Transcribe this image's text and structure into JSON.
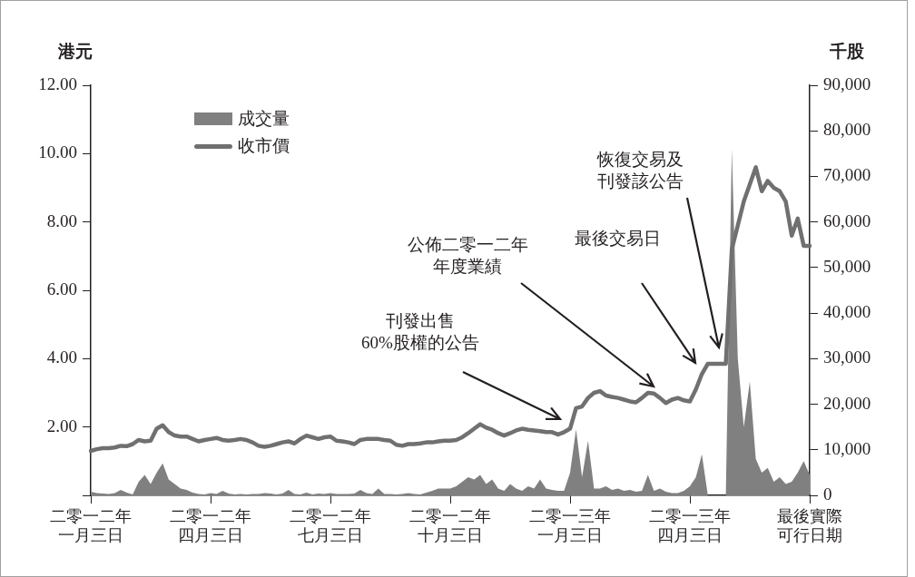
{
  "chart_data": {
    "type": "line",
    "ylabel": "港元",
    "y2label": "千股",
    "categories": [
      "二零一二年一月三日",
      null,
      null,
      null,
      null,
      null,
      null,
      null,
      null,
      null,
      null,
      null,
      null,
      null,
      null,
      null,
      null,
      null,
      null,
      null,
      "二零一二年四月三日",
      null,
      null,
      null,
      null,
      null,
      null,
      null,
      null,
      null,
      null,
      null,
      null,
      null,
      null,
      null,
      null,
      null,
      null,
      null,
      "二零一二年七月三日",
      null,
      null,
      null,
      null,
      null,
      null,
      null,
      null,
      null,
      null,
      null,
      null,
      null,
      null,
      null,
      null,
      null,
      null,
      null,
      "二零一二年十月三日",
      null,
      null,
      null,
      null,
      null,
      null,
      null,
      null,
      null,
      null,
      null,
      null,
      null,
      null,
      null,
      null,
      null,
      null,
      null,
      "二零一三年一月三日",
      null,
      null,
      null,
      null,
      null,
      null,
      null,
      null,
      null,
      null,
      null,
      null,
      null,
      null,
      null,
      null,
      null,
      null,
      null,
      "二零一三年四月三日",
      null,
      null,
      null,
      null,
      null,
      null,
      null,
      null,
      null,
      null,
      null,
      null,
      null,
      null,
      null,
      null,
      null,
      null,
      null,
      "最後實際可行日期"
    ],
    "series": [
      {
        "name": "成交量",
        "type": "area",
        "axis": "y2",
        "color": "#808080",
        "values": [
          800,
          500,
          400,
          300,
          500,
          1200,
          600,
          200,
          3000,
          4500,
          2500,
          5000,
          7000,
          3500,
          2500,
          1500,
          1200,
          600,
          300,
          200,
          500,
          300,
          1000,
          400,
          200,
          300,
          200,
          300,
          300,
          500,
          400,
          200,
          400,
          1200,
          300,
          200,
          600,
          200,
          400,
          300,
          500,
          300,
          300,
          300,
          400,
          1200,
          500,
          300,
          1500,
          300,
          300,
          200,
          300,
          500,
          300,
          200,
          600,
          1000,
          1500,
          1500,
          1500,
          2000,
          3000,
          4000,
          3500,
          4500,
          2500,
          3500,
          1500,
          1000,
          2500,
          1500,
          1000,
          2000,
          1500,
          3500,
          1500,
          1200,
          1000,
          1000,
          5000,
          14500,
          4000,
          12000,
          1500,
          1500,
          2000,
          1200,
          1500,
          1000,
          1200,
          800,
          1000,
          4500,
          1000,
          1500,
          800,
          500,
          500,
          1000,
          2000,
          4000,
          9000,
          0,
          0,
          0,
          0,
          76000,
          30000,
          15000,
          25000,
          8000,
          5000,
          6000,
          3000,
          4000,
          2500,
          3000,
          5000,
          7500,
          4500
        ]
      },
      {
        "name": "收市價",
        "type": "line",
        "color": "#707070",
        "values": [
          1.3,
          1.35,
          1.38,
          1.38,
          1.4,
          1.45,
          1.44,
          1.5,
          1.62,
          1.58,
          1.6,
          1.95,
          2.05,
          1.85,
          1.75,
          1.72,
          1.72,
          1.65,
          1.58,
          1.62,
          1.65,
          1.68,
          1.62,
          1.6,
          1.62,
          1.65,
          1.62,
          1.55,
          1.45,
          1.42,
          1.45,
          1.5,
          1.55,
          1.58,
          1.52,
          1.65,
          1.75,
          1.7,
          1.65,
          1.7,
          1.72,
          1.6,
          1.58,
          1.55,
          1.5,
          1.62,
          1.65,
          1.65,
          1.65,
          1.62,
          1.6,
          1.48,
          1.45,
          1.5,
          1.5,
          1.52,
          1.55,
          1.55,
          1.58,
          1.6,
          1.6,
          1.62,
          1.7,
          1.82,
          1.95,
          2.08,
          1.98,
          1.92,
          1.82,
          1.75,
          1.82,
          1.9,
          1.95,
          1.92,
          1.9,
          1.88,
          1.85,
          1.85,
          1.78,
          1.85,
          1.95,
          2.55,
          2.6,
          2.85,
          3.0,
          3.05,
          2.92,
          2.88,
          2.85,
          2.8,
          2.75,
          2.72,
          2.85,
          3.0,
          2.98,
          2.85,
          2.7,
          2.8,
          2.85,
          2.78,
          2.75,
          3.1,
          3.55,
          3.85,
          3.85,
          3.85,
          3.85,
          7.2,
          7.9,
          8.6,
          9.1,
          9.6,
          8.9,
          9.2,
          9.0,
          8.9,
          8.6,
          7.6,
          8.1,
          7.3,
          7.3
        ]
      }
    ],
    "ylim": [
      0,
      12
    ],
    "yticks": [
      {
        "value": 0,
        "label": null
      },
      {
        "value": 2,
        "label": "2.00"
      },
      {
        "value": 4,
        "label": "4.00"
      },
      {
        "value": 6,
        "label": "6.00"
      },
      {
        "value": 8,
        "label": "8.00"
      },
      {
        "value": 10,
        "label": "10.00"
      },
      {
        "value": 12,
        "label": "12.00"
      }
    ],
    "y2lim": [
      0,
      90000
    ],
    "y2ticks": [
      0,
      {
        "value": 10000,
        "label": "10,000"
      },
      {
        "value": 20000,
        "label": "20,000"
      },
      {
        "value": 30000,
        "label": "30,000"
      },
      {
        "value": 40000,
        "label": "40,000"
      },
      {
        "value": 50000,
        "label": "50,000"
      },
      {
        "value": 60000,
        "label": "60,000"
      },
      {
        "value": 70000,
        "label": "70,000"
      },
      {
        "value": 80000,
        "label": "80,000"
      },
      {
        "value": 90000,
        "label": "90,000"
      }
    ],
    "legend": "top left",
    "annotations": [
      "刊發出售60%股權的公告",
      "公佈二零一二年年度業績",
      "最後交易日",
      "恢復交易及刊發該公告"
    ]
  }
}
